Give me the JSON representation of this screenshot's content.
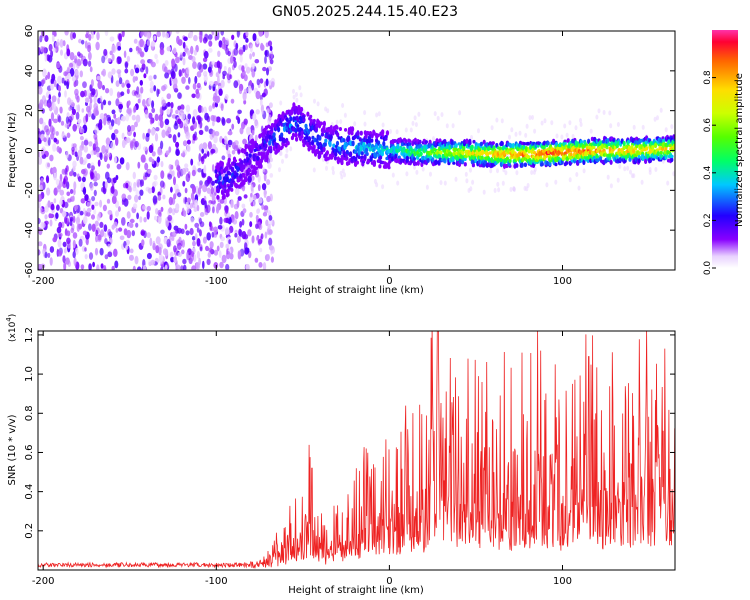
{
  "title": "GN05.2025.244.15.40.E23",
  "chart_data": [
    {
      "type": "heatmap",
      "xlabel": "Height of straight line (km)",
      "ylabel": "Frequency (Hz)",
      "xlim": [
        -203,
        165
      ],
      "ylim": [
        -60,
        60
      ],
      "xticks": [
        -200,
        -100,
        0,
        100
      ],
      "yticks": [
        60,
        40,
        20,
        0,
        -20,
        -40,
        -60
      ],
      "colorbar": {
        "label": "Normalized spectral amplitude",
        "range": [
          0,
          1
        ],
        "ticks": [
          "0.0",
          "0.2",
          "0.4",
          "0.6",
          "0.8"
        ],
        "tick_values": [
          0,
          0.2,
          0.4,
          0.6,
          0.8
        ]
      },
      "ridge": {
        "x": [
          -95,
          -85,
          -75,
          -65,
          -55,
          -50,
          -40,
          -30,
          -20,
          -10,
          0,
          20,
          40,
          60,
          80,
          100,
          120,
          140,
          165
        ],
        "freq": [
          -15,
          -8,
          0,
          8,
          14,
          12,
          5,
          3,
          2,
          1,
          0,
          -1,
          -1,
          -2,
          -2,
          -1,
          0,
          0,
          1
        ],
        "amplitude": [
          0.25,
          0.22,
          0.2,
          0.28,
          0.3,
          0.28,
          0.3,
          0.32,
          0.35,
          0.38,
          0.4,
          0.55,
          0.7,
          0.8,
          0.9,
          0.95,
          0.85,
          0.8,
          0.75
        ]
      },
      "noise_region_x": [
        -203,
        -75
      ]
    },
    {
      "type": "line",
      "xlabel": "Height of straight line (km)",
      "ylabel": "SNR (10 * v/v)",
      "scale_label": "(x10",
      "scale_exp": "4",
      "scale_close": ")",
      "xlim": [
        -203,
        165
      ],
      "ylim": [
        0,
        1.22
      ],
      "xticks": [
        -200,
        -100,
        0,
        100
      ],
      "yticks": [
        0.2,
        0.4,
        0.6,
        0.8,
        1.0,
        1.2
      ],
      "ytick_labels": [
        "0.2",
        "0.4",
        "0.6",
        "0.8",
        "1.0",
        "1.2"
      ],
      "series": [
        {
          "name": "SNR",
          "color": "#ee2222",
          "envelope_x": [
            -203,
            -80,
            -70,
            -60,
            -50,
            -45,
            -40,
            -35,
            -30,
            -20,
            -10,
            0,
            10,
            20,
            28,
            40,
            60,
            80,
            100,
            115,
            120,
            140,
            160,
            165
          ],
          "envelope_y": [
            0.03,
            0.03,
            0.06,
            0.2,
            0.3,
            0.5,
            0.25,
            0.2,
            0.3,
            0.4,
            0.5,
            0.55,
            0.6,
            0.7,
            1.22,
            0.8,
            0.75,
            0.85,
            0.8,
            1.1,
            0.75,
            0.8,
            0.95,
            0.85
          ]
        }
      ]
    }
  ]
}
